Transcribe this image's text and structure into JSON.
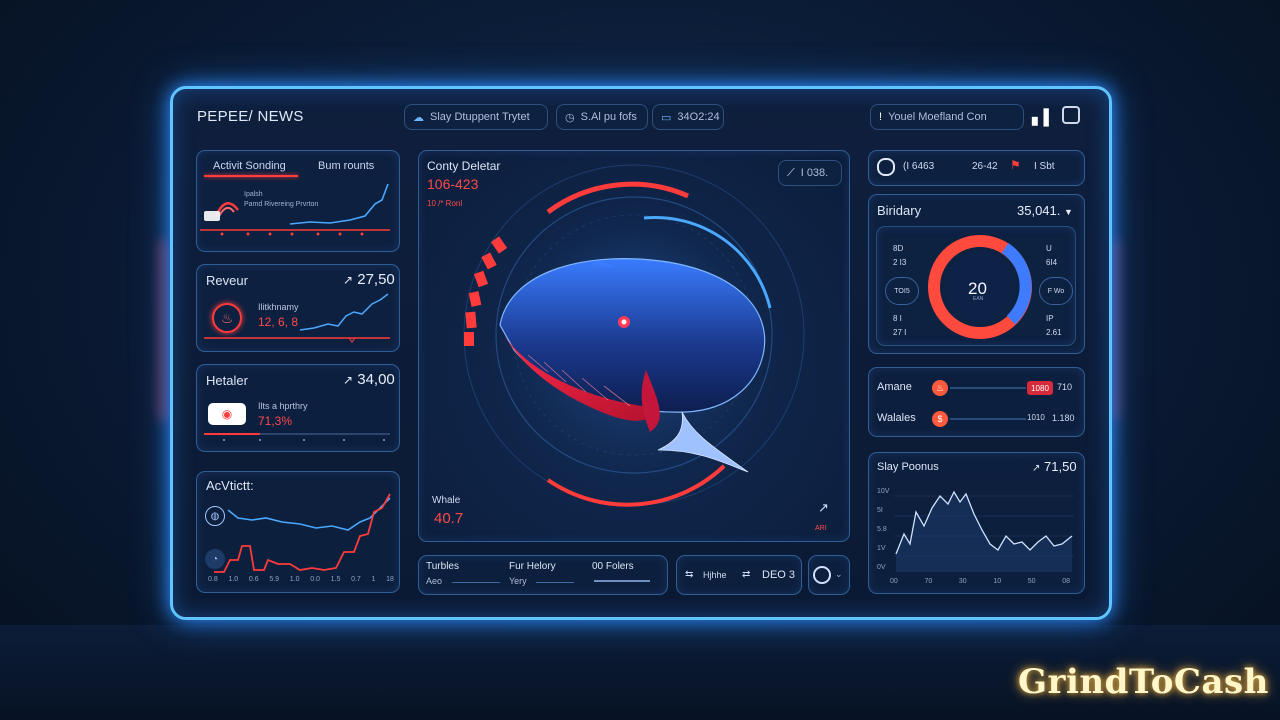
{
  "header": {
    "brand": "PEPEE/ NEWS",
    "pill1": "Slay Dtuppent Trytet",
    "pill2": "S.Al pu fofs",
    "pill3": "34O2:24",
    "search": "Youel Moefland Con"
  },
  "activity_panel": {
    "tab_active": "Activit Sonding",
    "tab_other": "Bum rounts",
    "note_title": "Ipalsh",
    "note_sub": "Pamd Rivereing Prvrton"
  },
  "revenue_panel": {
    "title": "Reveur",
    "value": "27,50",
    "sub": "Ilitkhnamy",
    "amount": "12, 6, 8"
  },
  "hetaler_panel": {
    "title": "Hetaler",
    "value": "34,00",
    "sub": "Ilts a hprthry",
    "amount": "71,3%"
  },
  "activity2_panel": {
    "title": "AcVtictt:",
    "x_ticks": [
      "0.8",
      "1.0",
      "0.6",
      "5.9",
      "1.0",
      "0.0",
      "1.5",
      "0.7",
      "1",
      "18"
    ]
  },
  "center_panel": {
    "title": "Conty Deletar",
    "range": "106-423",
    "sub": "10 /* Ronl",
    "badge": "I 038.",
    "whale_label": "Whale",
    "whale_value": "40.7",
    "corner": "ARI"
  },
  "bottom_center": {
    "col1_a": "Turbles",
    "col1_b": "Aeo",
    "col2_a": "Fur Helory",
    "col2_b": "Yery",
    "col3_a": "00 Folers",
    "box2_a": "Hjhhe",
    "box2_b": "DEO 3"
  },
  "right_top": {
    "a": "(I 6463",
    "b": "26-42",
    "c": "I Sbt"
  },
  "donut_panel": {
    "title": "Biridary",
    "value": "35,041.",
    "center": "20",
    "center_sub": "EAN",
    "left_labels": [
      "8D",
      "2 I3",
      "TOI5",
      "8 I",
      "27 I"
    ],
    "right_labels": [
      "U",
      "6I4",
      "F Wo",
      "IP",
      "2.61"
    ]
  },
  "list_panel": {
    "rows": [
      {
        "name": "Amane",
        "badge": "1080",
        "value": "710"
      },
      {
        "name": "Walales",
        "badge": "1010",
        "value": "1.180"
      }
    ]
  },
  "slay_panel": {
    "title": "Slay Poonus",
    "value": "71,50",
    "y_ticks": [
      "10V",
      "5I",
      "5.8",
      "1V",
      "0V"
    ],
    "x_ticks": [
      "00",
      "70",
      "30",
      "10",
      "50",
      "08"
    ]
  },
  "watermark": "GrindToCash",
  "colors": {
    "accent_blue": "#4aa8ff",
    "accent_red": "#ff3b3b",
    "frame": "#5fc4ff"
  }
}
